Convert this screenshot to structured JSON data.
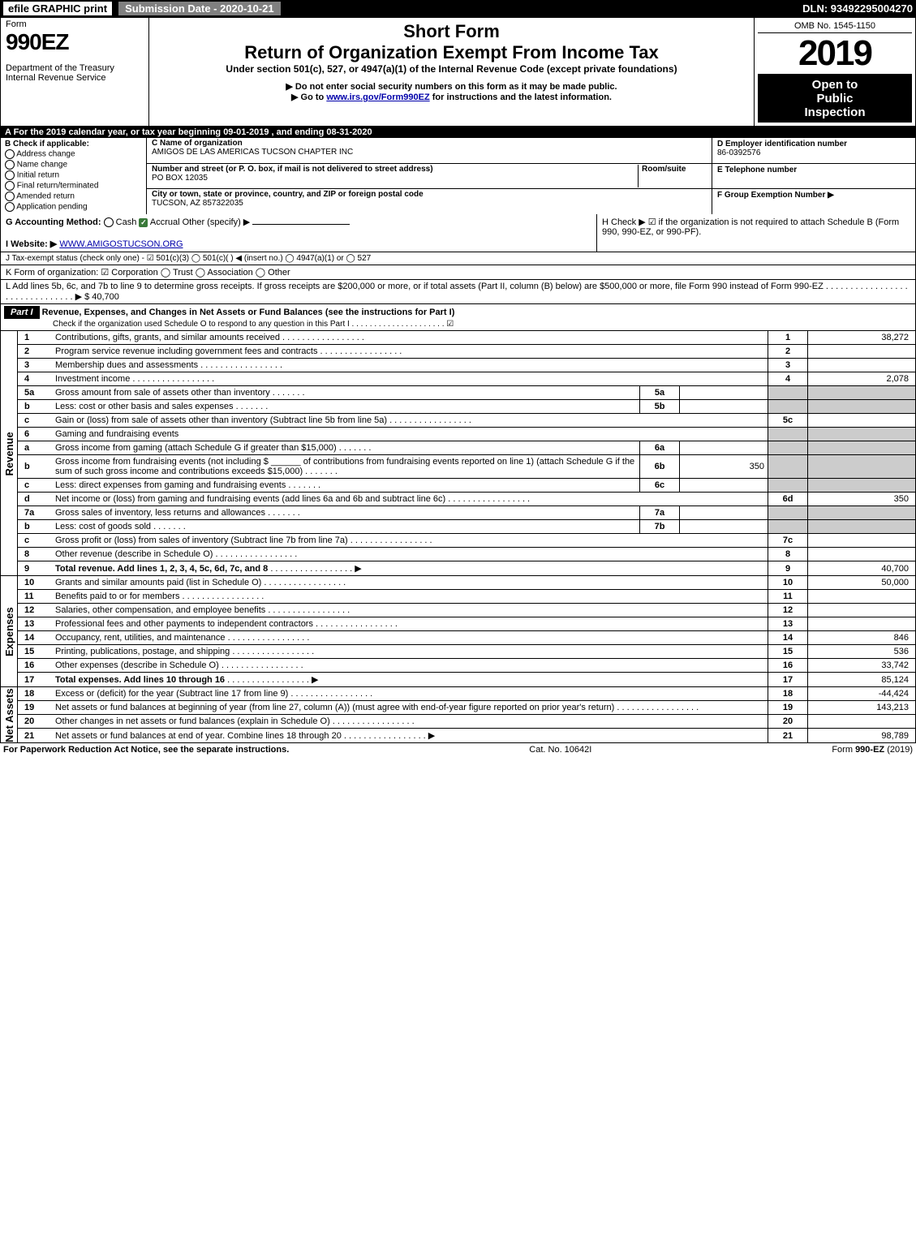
{
  "topbar": {
    "efile": "efile GRAPHIC print",
    "submission": "Submission Date - 2020-10-21",
    "dln": "DLN: 93492295004270"
  },
  "header": {
    "form_word": "Form",
    "form_number": "990EZ",
    "dept": "Department of the Treasury",
    "irs": "Internal Revenue Service",
    "short_form": "Short Form",
    "main_title": "Return of Organization Exempt From Income Tax",
    "under_section": "Under section 501(c), 527, or 4947(a)(1) of the Internal Revenue Code (except private foundations)",
    "no_ssn": "▶ Do not enter social security numbers on this form as it may be made public.",
    "goto": "▶ Go to ",
    "goto_link": "www.irs.gov/Form990EZ",
    "goto_tail": " for instructions and the latest information.",
    "omb": "OMB No. 1545-1150",
    "year": "2019",
    "open1": "Open to",
    "open2": "Public",
    "open3": "Inspection"
  },
  "line_a": "A  For the 2019 calendar year, or tax year beginning 09-01-2019 , and ending 08-31-2020",
  "section_b": {
    "title": "B  Check if applicable:",
    "opts": [
      "Address change",
      "Name change",
      "Initial return",
      "Final return/terminated",
      "Amended return",
      "Application pending"
    ]
  },
  "section_c": {
    "label_name": "C Name of organization",
    "name": "AMIGOS DE LAS AMERICAS TUCSON CHAPTER INC",
    "label_addr": "Number and street (or P. O. box, if mail is not delivered to street address)",
    "room": "Room/suite",
    "addr": "PO BOX 12035",
    "label_city": "City or town, state or province, country, and ZIP or foreign postal code",
    "city": "TUCSON, AZ  857322035"
  },
  "section_d": {
    "label_ein": "D Employer identification number",
    "ein": "86-0392576",
    "label_phone": "E Telephone number",
    "phone": "",
    "label_group": "F Group Exemption Number   ▶",
    "group": ""
  },
  "line_g": {
    "label": "G Accounting Method:",
    "cash": "Cash",
    "accrual": "Accrual",
    "other": "Other (specify) ▶"
  },
  "line_h": "H  Check ▶ ☑ if the organization is not required to attach Schedule B (Form 990, 990-EZ, or 990-PF).",
  "line_i": {
    "label": "I Website: ▶",
    "value": "WWW.AMIGOSTUCSON.ORG"
  },
  "line_j": "J Tax-exempt status (check only one) - ☑ 501(c)(3)  ◯ 501(c)(  ) ◀ (insert no.)  ◯ 4947(a)(1) or  ◯ 527",
  "line_k": "K Form of organization:   ☑ Corporation   ◯ Trust   ◯ Association   ◯ Other",
  "line_l": {
    "text": "L Add lines 5b, 6c, and 7b to line 9 to determine gross receipts. If gross receipts are $200,000 or more, or if total assets (Part II, column (B) below) are $500,000 or more, file Form 990 instead of Form 990-EZ  . . . . . . . . . . . . . . . . . . . . . . . . . . . . . . . ▶ $ ",
    "value": "40,700"
  },
  "part1": {
    "label": "Part I",
    "title": "Revenue, Expenses, and Changes in Net Assets or Fund Balances (see the instructions for Part I)",
    "sub": "Check if the organization used Schedule O to respond to any question in this Part I . . . . . . . . . . . . . . . . . . . . . ☑"
  },
  "side_labels": {
    "revenue": "Revenue",
    "expenses": "Expenses",
    "net": "Net Assets"
  },
  "rows": [
    {
      "n": "1",
      "desc": "Contributions, gifts, grants, and similar amounts received",
      "num": "1",
      "val": "38,272"
    },
    {
      "n": "2",
      "desc": "Program service revenue including government fees and contracts",
      "num": "2",
      "val": ""
    },
    {
      "n": "3",
      "desc": "Membership dues and assessments",
      "num": "3",
      "val": ""
    },
    {
      "n": "4",
      "desc": "Investment income",
      "num": "4",
      "val": "2,078"
    },
    {
      "n": "5a",
      "desc": "Gross amount from sale of assets other than inventory",
      "sub": "5a",
      "subval": "",
      "grey": true
    },
    {
      "n": "b",
      "desc": "Less: cost or other basis and sales expenses",
      "sub": "5b",
      "subval": "",
      "grey": true
    },
    {
      "n": "c",
      "desc": "Gain or (loss) from sale of assets other than inventory (Subtract line 5b from line 5a)",
      "num": "5c",
      "val": ""
    },
    {
      "n": "6",
      "desc": "Gaming and fundraising events",
      "grey": true,
      "noval": true
    },
    {
      "n": "a",
      "desc": "Gross income from gaming (attach Schedule G if greater than $15,000)",
      "sub": "6a",
      "subval": "",
      "grey": true
    },
    {
      "n": "b",
      "desc": "Gross income from fundraising events (not including $ ______ of contributions from fundraising events reported on line 1) (attach Schedule G if the sum of such gross income and contributions exceeds $15,000)",
      "sub": "6b",
      "subval": "350",
      "grey": true
    },
    {
      "n": "c",
      "desc": "Less: direct expenses from gaming and fundraising events",
      "sub": "6c",
      "subval": "",
      "grey": true
    },
    {
      "n": "d",
      "desc": "Net income or (loss) from gaming and fundraising events (add lines 6a and 6b and subtract line 6c)",
      "num": "6d",
      "val": "350"
    },
    {
      "n": "7a",
      "desc": "Gross sales of inventory, less returns and allowances",
      "sub": "7a",
      "subval": "",
      "grey": true
    },
    {
      "n": "b",
      "desc": "Less: cost of goods sold",
      "sub": "7b",
      "subval": "",
      "grey": true
    },
    {
      "n": "c",
      "desc": "Gross profit or (loss) from sales of inventory (Subtract line 7b from line 7a)",
      "num": "7c",
      "val": ""
    },
    {
      "n": "8",
      "desc": "Other revenue (describe in Schedule O)",
      "num": "8",
      "val": ""
    },
    {
      "n": "9",
      "desc": "Total revenue. Add lines 1, 2, 3, 4, 5c, 6d, 7c, and 8",
      "num": "9",
      "val": "40,700",
      "bold": true,
      "arrow": true
    }
  ],
  "expense_rows": [
    {
      "n": "10",
      "desc": "Grants and similar amounts paid (list in Schedule O)",
      "num": "10",
      "val": "50,000"
    },
    {
      "n": "11",
      "desc": "Benefits paid to or for members",
      "num": "11",
      "val": ""
    },
    {
      "n": "12",
      "desc": "Salaries, other compensation, and employee benefits",
      "num": "12",
      "val": ""
    },
    {
      "n": "13",
      "desc": "Professional fees and other payments to independent contractors",
      "num": "13",
      "val": ""
    },
    {
      "n": "14",
      "desc": "Occupancy, rent, utilities, and maintenance",
      "num": "14",
      "val": "846"
    },
    {
      "n": "15",
      "desc": "Printing, publications, postage, and shipping",
      "num": "15",
      "val": "536"
    },
    {
      "n": "16",
      "desc": "Other expenses (describe in Schedule O)",
      "num": "16",
      "val": "33,742"
    },
    {
      "n": "17",
      "desc": "Total expenses. Add lines 10 through 16",
      "num": "17",
      "val": "85,124",
      "bold": true,
      "arrow": true
    }
  ],
  "net_rows": [
    {
      "n": "18",
      "desc": "Excess or (deficit) for the year (Subtract line 17 from line 9)",
      "num": "18",
      "val": "-44,424"
    },
    {
      "n": "19",
      "desc": "Net assets or fund balances at beginning of year (from line 27, column (A)) (must agree with end-of-year figure reported on prior year's return)",
      "num": "19",
      "val": "143,213"
    },
    {
      "n": "20",
      "desc": "Other changes in net assets or fund balances (explain in Schedule O)",
      "num": "20",
      "val": ""
    },
    {
      "n": "21",
      "desc": "Net assets or fund balances at end of year. Combine lines 18 through 20",
      "num": "21",
      "val": "98,789",
      "arrow": true
    }
  ],
  "footer": {
    "left": "For Paperwork Reduction Act Notice, see the separate instructions.",
    "center": "Cat. No. 10642I",
    "right": "Form 990-EZ (2019)"
  }
}
